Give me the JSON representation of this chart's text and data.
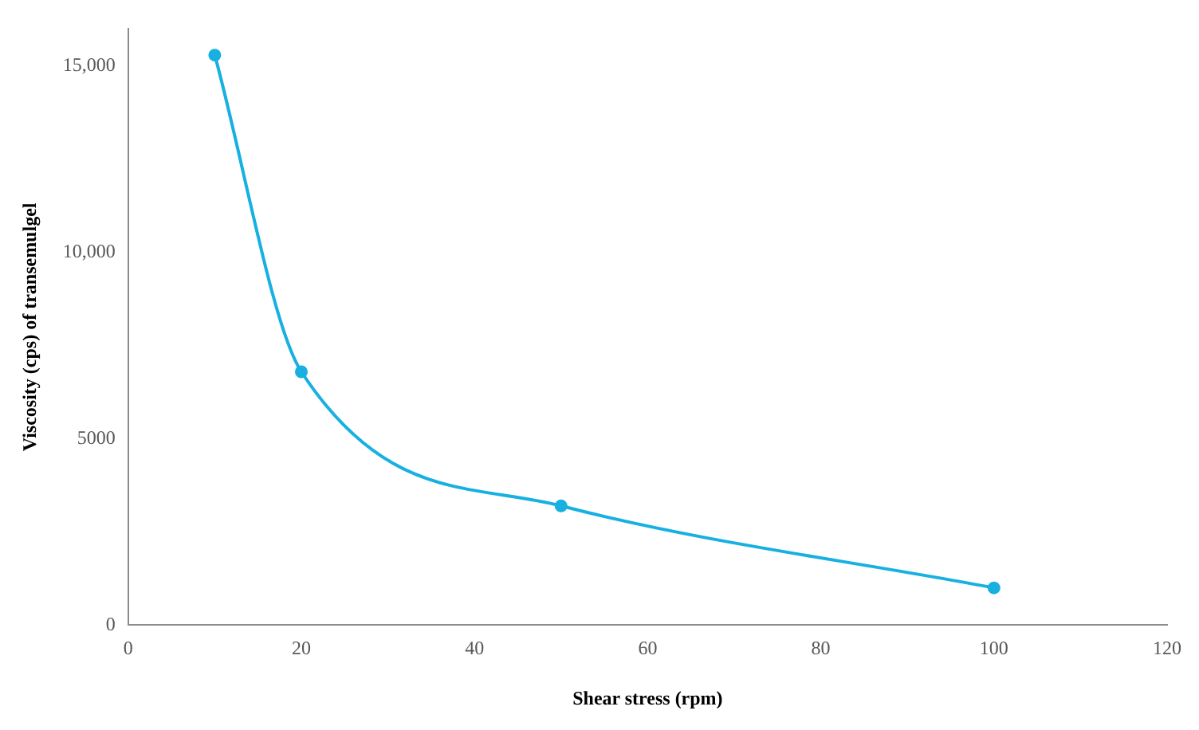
{
  "chart_data": {
    "type": "line",
    "xlabel": "Shear stress (rpm)",
    "ylabel": "Viscosity (cps) of transemulgel",
    "x": [
      10,
      20,
      50,
      100
    ],
    "series": [
      {
        "color": "#17b0e0",
        "values": [
          15300,
          6800,
          3200,
          1000
        ]
      }
    ],
    "xlim": [
      0,
      120
    ],
    "xticks": [
      0,
      20,
      40,
      60,
      80,
      100,
      120
    ],
    "ylim": [
      0,
      16000
    ],
    "yticks": [
      0,
      5000,
      {
        "value": 10000,
        "label": "10,000"
      },
      {
        "value": 15000,
        "label": "15,000"
      }
    ],
    "grid": false,
    "legend": false,
    "marker": "circle",
    "line_style": "solid"
  }
}
